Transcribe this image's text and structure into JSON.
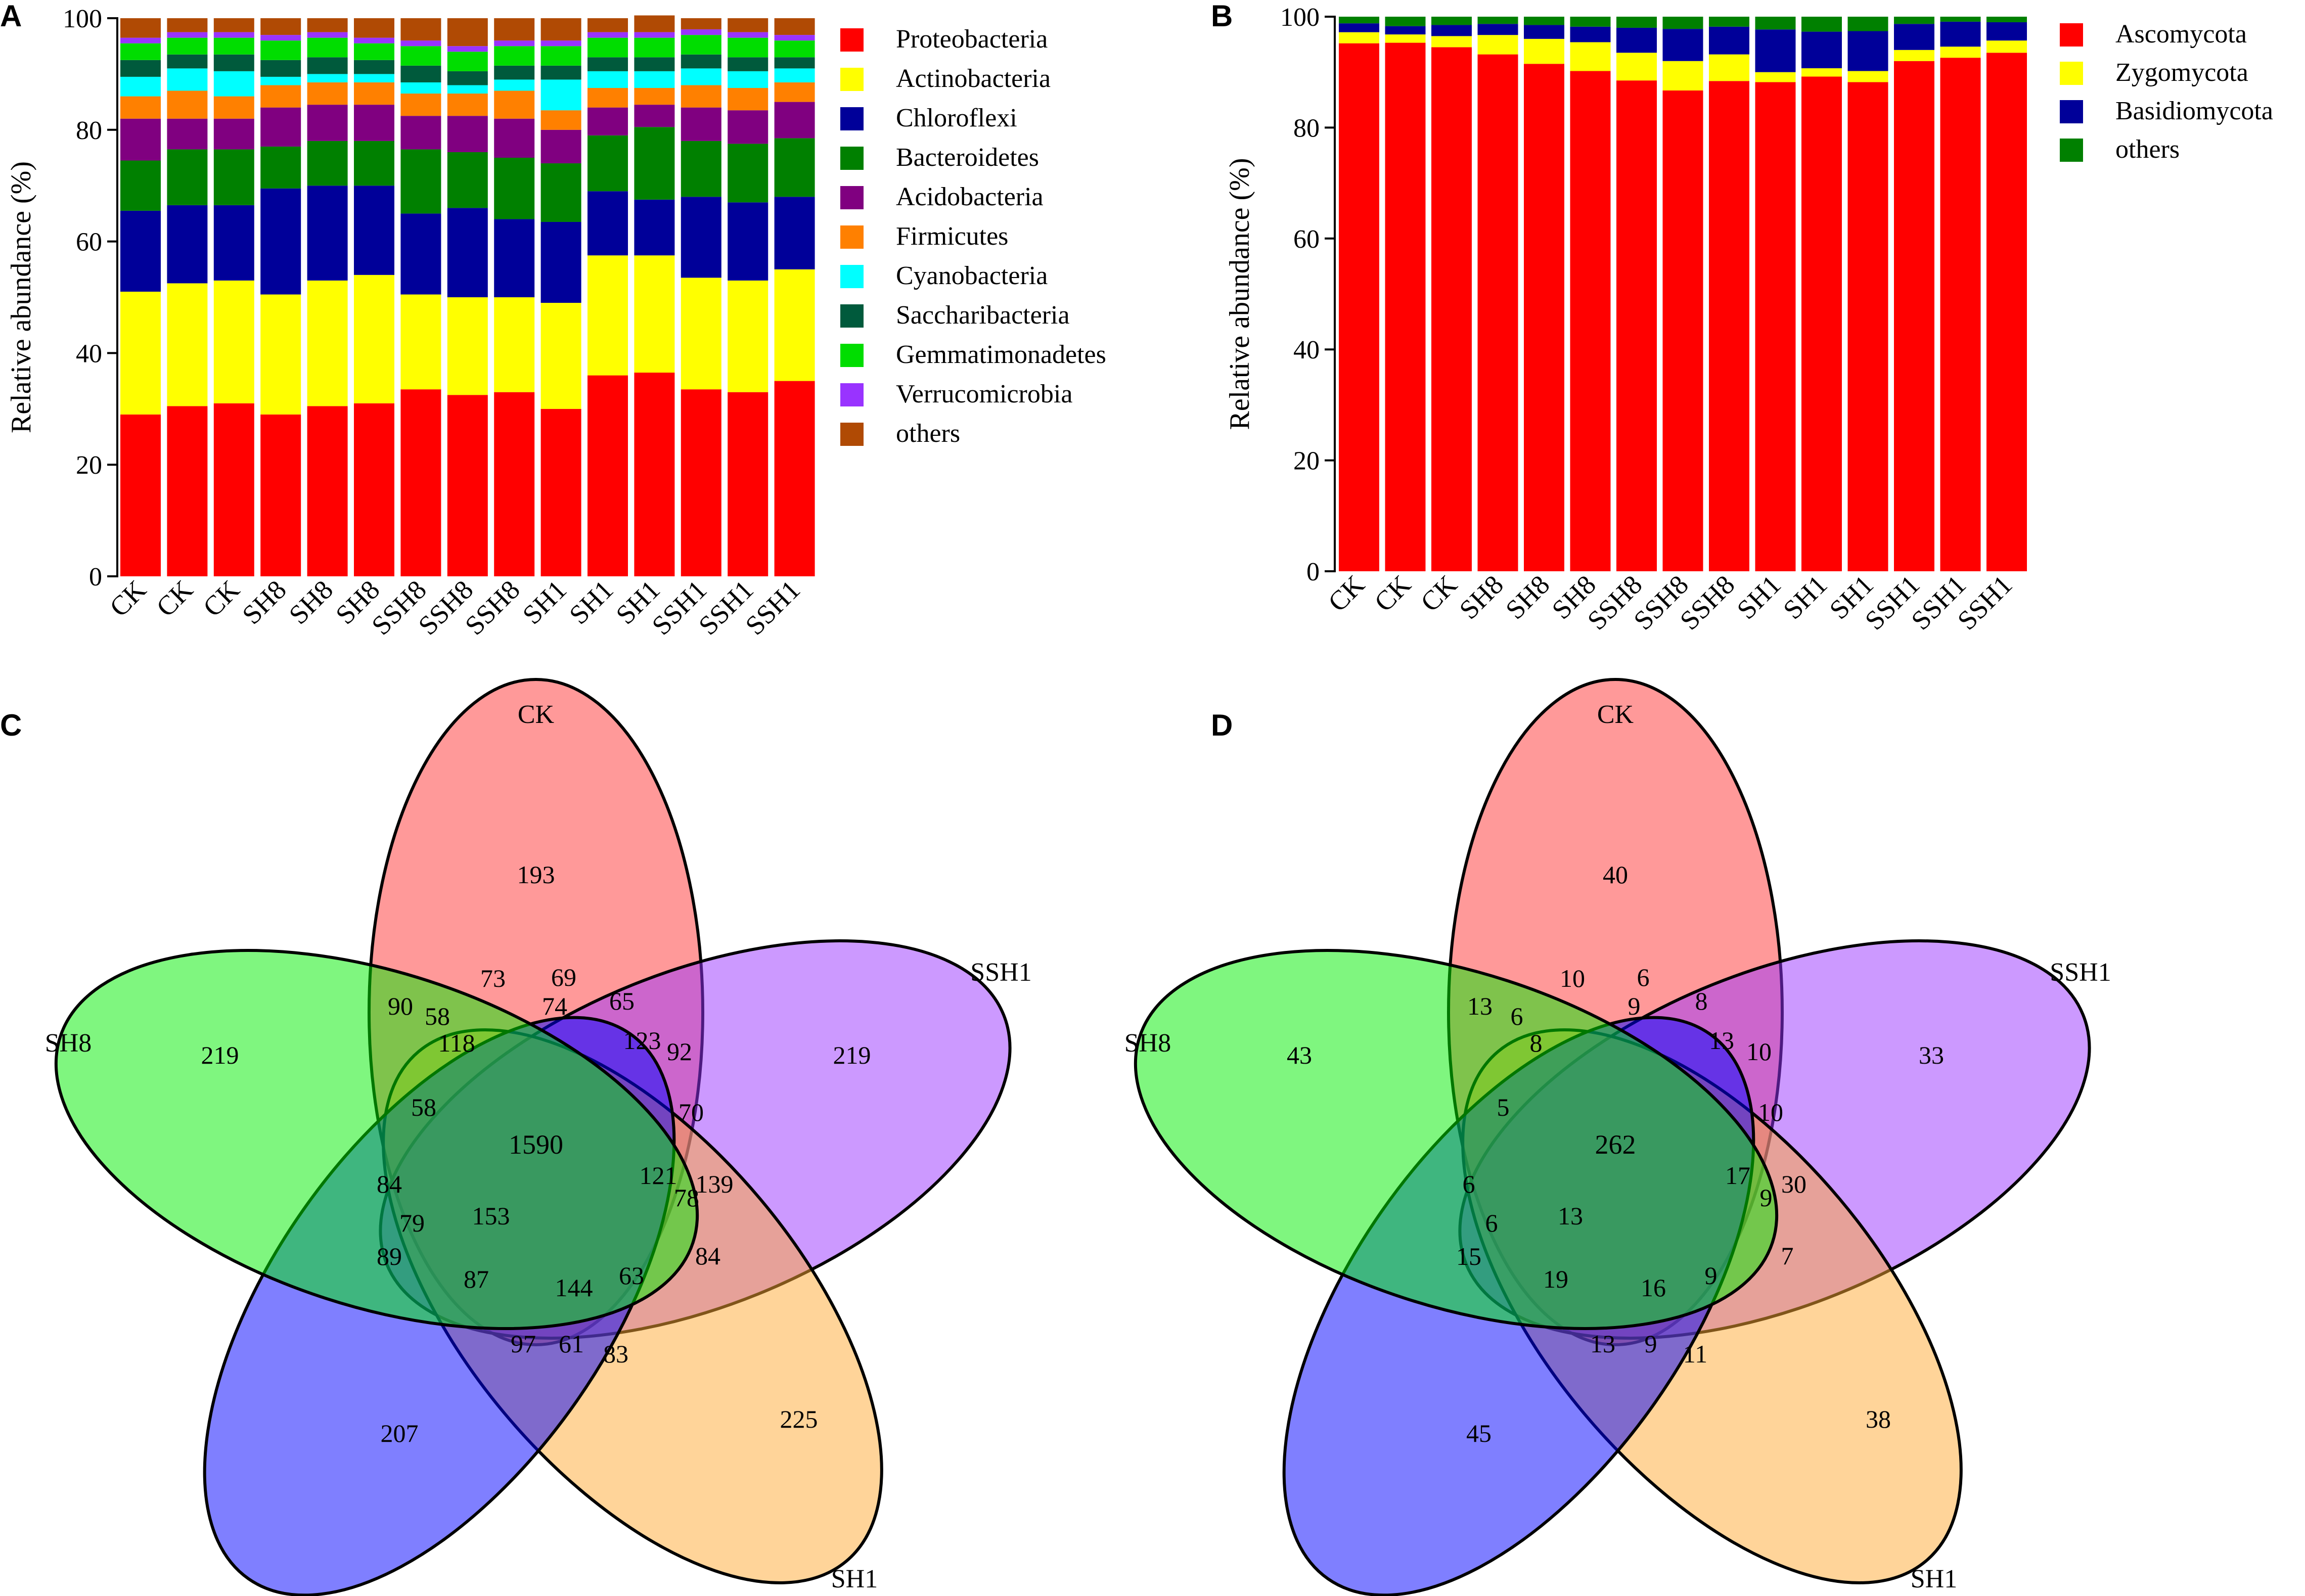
{
  "chart_data": [
    {
      "panel": "A",
      "type": "bar",
      "stacked": true,
      "ylabel": "Relative abundance (%)",
      "ylim": [
        0,
        100
      ],
      "yticks": [
        "0",
        "20",
        "40",
        "60",
        "80",
        "100"
      ],
      "categories": [
        "CK",
        "CK",
        "CK",
        "SH8",
        "SH8",
        "SH8",
        "SSH8",
        "SSH8",
        "SSH8",
        "SH1",
        "SH1",
        "SH1",
        "SSH1",
        "SSH1",
        "SSH1"
      ],
      "series": [
        {
          "name": "Proteobacteria",
          "color": "#ff0000",
          "values": [
            29,
            30.5,
            31,
            29,
            30.5,
            31,
            33.5,
            32.5,
            33,
            30,
            36,
            36.5,
            33.5,
            33,
            35
          ]
        },
        {
          "name": "Actinobacteria",
          "color": "#ffff00",
          "values": [
            22,
            22,
            22,
            21.5,
            22.5,
            23,
            17,
            17.5,
            17,
            19,
            21.5,
            21,
            20,
            20,
            20
          ]
        },
        {
          "name": "Chloroflexi",
          "color": "#000099",
          "values": [
            14.5,
            14,
            13.5,
            19,
            17,
            16,
            14.5,
            16,
            14,
            14.5,
            11.5,
            10,
            14.5,
            14,
            13
          ]
        },
        {
          "name": "Bacteroidetes",
          "color": "#008000",
          "values": [
            9,
            10,
            10,
            7.5,
            8,
            8,
            11.5,
            10,
            11,
            10.5,
            10,
            13,
            10,
            10.5,
            10.5
          ]
        },
        {
          "name": "Acidobacteria",
          "color": "#800080",
          "values": [
            7.5,
            5.5,
            5.5,
            7,
            6.5,
            6.5,
            6,
            6.5,
            7,
            6,
            5,
            4,
            6,
            6,
            6.5
          ]
        },
        {
          "name": "Firmicutes",
          "color": "#ff8000",
          "values": [
            4,
            5,
            4,
            4,
            4,
            4,
            4,
            4,
            5,
            3.5,
            3.5,
            3,
            4,
            4,
            3.5
          ]
        },
        {
          "name": "Cyanobacteria",
          "color": "#00ffff",
          "values": [
            3.5,
            4,
            4.5,
            1.5,
            1.5,
            1.5,
            2,
            1.5,
            2,
            5.5,
            3,
            3,
            3,
            3,
            2.5
          ]
        },
        {
          "name": "Saccharibacteria",
          "color": "#005a3c",
          "values": [
            3,
            2.5,
            3,
            3,
            3,
            2.5,
            3,
            2.5,
            2.5,
            2.5,
            2.5,
            2.5,
            2.5,
            2.5,
            2
          ]
        },
        {
          "name": "Gemmatimonadetes",
          "color": "#00dd00",
          "values": [
            3,
            3,
            3,
            3.5,
            3.5,
            3,
            3.5,
            3.5,
            3.5,
            3.5,
            3.5,
            3.5,
            3.5,
            3.5,
            3
          ]
        },
        {
          "name": "Verrucomicrobia",
          "color": "#9933ff",
          "values": [
            1,
            1,
            1,
            1,
            1,
            1,
            1,
            1,
            1,
            1,
            1,
            1,
            1,
            1,
            1
          ]
        },
        {
          "name": "others",
          "color": "#b04a04",
          "values": [
            3.5,
            2.5,
            2.5,
            3,
            2.5,
            3.5,
            4,
            5,
            4,
            4,
            2.5,
            3,
            2,
            2.5,
            3
          ]
        }
      ]
    },
    {
      "panel": "B",
      "type": "bar",
      "stacked": true,
      "ylabel": "Relative abundance (%)",
      "ylim": [
        0,
        100
      ],
      "yticks": [
        "0",
        "20",
        "40",
        "60",
        "80",
        "100"
      ],
      "categories": [
        "CK",
        "CK",
        "CK",
        "SH8",
        "SH8",
        "SH8",
        "SSH8",
        "SSH8",
        "SSH8",
        "SH1",
        "SH1",
        "SH1",
        "SSH1",
        "SSH1",
        "SSH1"
      ],
      "series": [
        {
          "name": "Ascomycota",
          "color": "#ff0000",
          "values": [
            95.2,
            95.3,
            94.5,
            93.2,
            91.5,
            90.2,
            88.5,
            86.7,
            88.4,
            88.2,
            89.2,
            88.2,
            92,
            92.6,
            93.5
          ]
        },
        {
          "name": "Zygomycota",
          "color": "#ffff00",
          "values": [
            2,
            1.5,
            2,
            3.5,
            4.5,
            5.2,
            5,
            5.3,
            4.8,
            1.8,
            1.5,
            2,
            2,
            2,
            2.2
          ]
        },
        {
          "name": "Basidiomycota",
          "color": "#000099",
          "values": [
            1.6,
            1.5,
            2,
            2,
            2.5,
            2.8,
            4.5,
            5.8,
            5,
            7.7,
            6.6,
            7.2,
            4.7,
            4.5,
            3.3
          ]
        },
        {
          "name": "others",
          "color": "#008000",
          "values": [
            1.2,
            1.7,
            1.5,
            1.3,
            1.5,
            1.8,
            2,
            2.2,
            1.8,
            2.3,
            2.7,
            2.6,
            1.3,
            0.9,
            1
          ]
        }
      ]
    },
    {
      "panel": "C",
      "type": "venn",
      "sets": [
        {
          "name": "CK",
          "color": "#ff3333"
        },
        {
          "name": "SSH1",
          "color": "#9933ff"
        },
        {
          "name": "SH1",
          "color": "#ffaa33"
        },
        {
          "name": "SSH8",
          "color": "#0000ff"
        },
        {
          "name": "SH8",
          "color": "#00ee00"
        }
      ],
      "regions": [
        {
          "sets": "CK",
          "value": 193
        },
        {
          "sets": "SSH1",
          "value": 219
        },
        {
          "sets": "SH1",
          "value": 225
        },
        {
          "sets": "SSH8",
          "value": 207
        },
        {
          "sets": "SH8",
          "value": 219
        },
        {
          "sets": "CK+SSH1",
          "value": 69
        },
        {
          "sets": "CK+SH1",
          "value": 73
        },
        {
          "sets": "CK+SH8",
          "value": 90
        },
        {
          "sets": "CK+SH1+SH8",
          "value": 58
        },
        {
          "sets": "CK+SSH1+SH1",
          "value": 74
        },
        {
          "sets": "CK+SSH1+SSH8",
          "value": 65
        },
        {
          "sets": "SSH1+SSH8",
          "value": 92
        },
        {
          "sets": "CK+SSH1+SH1+SSH8",
          "value": 123
        },
        {
          "sets": "CK+SH1+SSH8+SH8",
          "value": 118
        },
        {
          "sets": "SSH1+SSH8+SH8",
          "value": 70
        },
        {
          "sets": "CK+SSH8+SH8",
          "value": 58
        },
        {
          "sets": "all",
          "value": 1590
        },
        {
          "sets": "SSH1+SH1",
          "value": 139
        },
        {
          "sets": "SSH1+SH1+SSH8+SH8",
          "value": 121
        },
        {
          "sets": "SSH8+SH8",
          "value": 84
        },
        {
          "sets": "SSH1+SH1+SH8",
          "value": 78
        },
        {
          "sets": "CK+SSH1+SSH8+SH8",
          "value": 153
        },
        {
          "sets": "CK+SSH8",
          "value": 79
        },
        {
          "sets": "SH1+SH8",
          "value": 84
        },
        {
          "sets": "SH8+SSH8",
          "value": 89
        },
        {
          "sets": "SSH8+SH8+SH1",
          "value": 87
        },
        {
          "sets": "SSH1+SH1+SSH8+SH8b",
          "value": 144
        },
        {
          "sets": "SH1+SSH8+SH8",
          "value": 63
        },
        {
          "sets": "CK+SSH8+SH1",
          "value": 97
        },
        {
          "sets": "SH1+SSH8",
          "value": 61
        },
        {
          "sets": "SH1+SSH8b",
          "value": 83
        }
      ]
    },
    {
      "panel": "D",
      "type": "venn",
      "sets": [
        {
          "name": "CK",
          "color": "#ff3333"
        },
        {
          "name": "SSH1",
          "color": "#9933ff"
        },
        {
          "name": "SH1",
          "color": "#ffaa33"
        },
        {
          "name": "SSH8",
          "color": "#0000ff"
        },
        {
          "name": "SH8",
          "color": "#00ee00"
        }
      ],
      "regions": [
        {
          "sets": "CK",
          "value": 40
        },
        {
          "sets": "SSH1",
          "value": 33
        },
        {
          "sets": "SH1",
          "value": 38
        },
        {
          "sets": "SSH8",
          "value": 45
        },
        {
          "sets": "SH8",
          "value": 43
        },
        {
          "sets": "CK+SSH1",
          "value": 6
        },
        {
          "sets": "CK+SH1",
          "value": 10
        },
        {
          "sets": "CK+SH8",
          "value": 13
        },
        {
          "sets": "CK+SH1+SH8",
          "value": 6
        },
        {
          "sets": "CK+SSH1+SH1",
          "value": 9
        },
        {
          "sets": "CK+SSH1+SSH8",
          "value": 8
        },
        {
          "sets": "SSH1+SSH8",
          "value": 10
        },
        {
          "sets": "CK+SSH1+SH1+SSH8",
          "value": 13
        },
        {
          "sets": "CK+SH1+SSH8+SH8",
          "value": 8
        },
        {
          "sets": "SSH1+SSH8+SH8",
          "value": 10
        },
        {
          "sets": "CK+SSH8+SH8",
          "value": 5
        },
        {
          "sets": "all",
          "value": 262
        },
        {
          "sets": "SSH1+SH1",
          "value": 30
        },
        {
          "sets": "SSH1+SH1+SSH8+SH8",
          "value": 17
        },
        {
          "sets": "SSH8+SH8",
          "value": 6
        },
        {
          "sets": "SSH1+SH1+SH8",
          "value": 9
        },
        {
          "sets": "CK+SSH1+SSH8+SH8",
          "value": 13
        },
        {
          "sets": "CK+SSH8",
          "value": 6
        },
        {
          "sets": "SH1+SH8",
          "value": 7
        },
        {
          "sets": "SH8+SSH8",
          "value": 15
        },
        {
          "sets": "SSH8+SH8+SH1",
          "value": 19
        },
        {
          "sets": "SSH1+SH1+SSH8+SH8b",
          "value": 16
        },
        {
          "sets": "SH1+SSH8+SH8",
          "value": 9
        },
        {
          "sets": "CK+SSH8+SH1",
          "value": 13
        },
        {
          "sets": "SH1+SSH8",
          "value": 9
        },
        {
          "sets": "SH1+SSH8b",
          "value": 11
        }
      ]
    }
  ]
}
